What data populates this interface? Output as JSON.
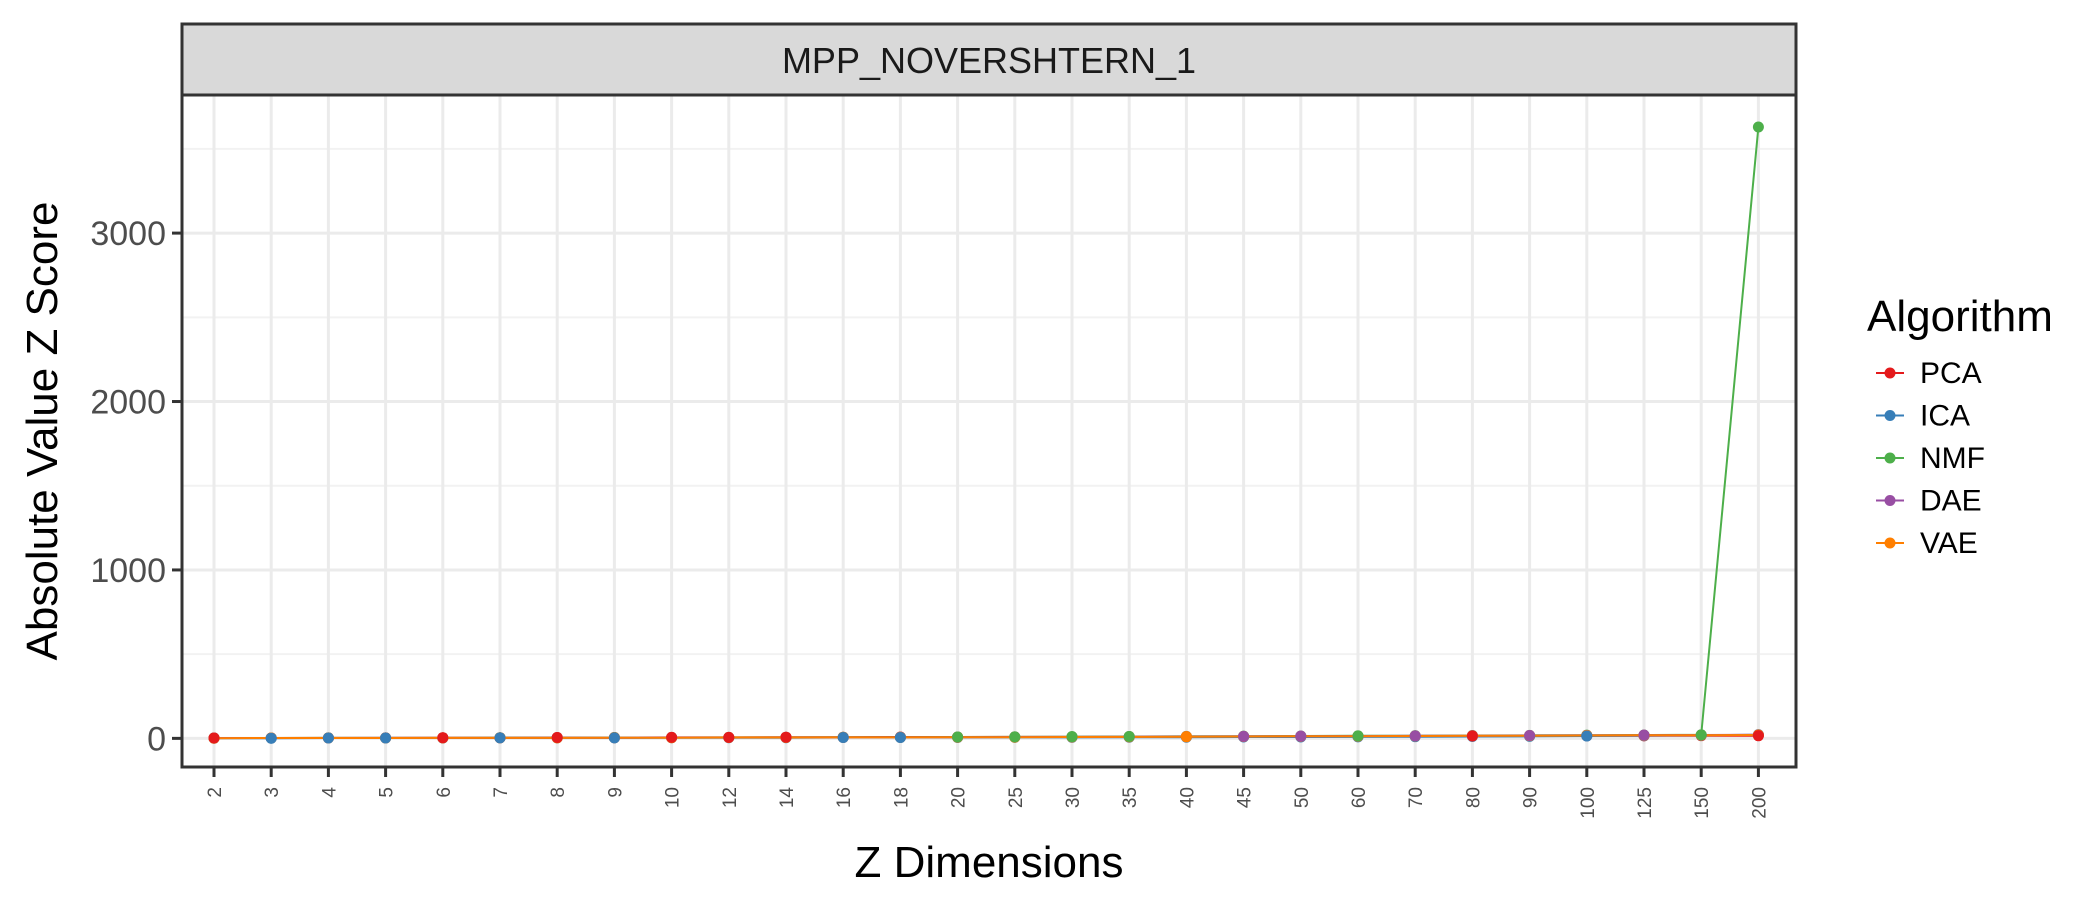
{
  "chart_data": {
    "type": "line",
    "title": "MPP_NOVERSHTERN_1",
    "xlabel": "Z Dimensions",
    "ylabel": "Absolute Value Z Score",
    "x_type": "categorical",
    "categories": [
      "2",
      "3",
      "4",
      "5",
      "6",
      "7",
      "8",
      "9",
      "10",
      "12",
      "14",
      "16",
      "18",
      "20",
      "25",
      "30",
      "35",
      "40",
      "45",
      "50",
      "60",
      "70",
      "80",
      "90",
      "100",
      "125",
      "150",
      "200"
    ],
    "ylim": [
      -170,
      3820
    ],
    "y_ticks": [
      0,
      1000,
      2000,
      3000
    ],
    "y_tick_labels": [
      "0",
      "1000",
      "2000",
      "3000"
    ],
    "grid": true,
    "legend": {
      "title": "Algorithm",
      "position": "right",
      "entries": [
        "PCA",
        "ICA",
        "NMF",
        "DAE",
        "VAE"
      ]
    },
    "series": [
      {
        "name": "PCA",
        "color": "#e41a1c",
        "values": [
          2,
          2,
          3,
          3,
          4,
          4,
          5,
          5,
          6,
          6,
          7,
          7,
          8,
          8,
          9,
          9,
          10,
          10,
          11,
          11,
          12,
          13,
          14,
          14,
          15,
          15,
          16,
          16
        ]
      },
      {
        "name": "ICA",
        "color": "#377eb8",
        "values": [
          1,
          1,
          2,
          2,
          2,
          3,
          3,
          3,
          4,
          4,
          4,
          5,
          5,
          5,
          6,
          6,
          7,
          7,
          8,
          8,
          9,
          10,
          11,
          12,
          14,
          16,
          18,
          22
        ]
      },
      {
        "name": "NMF",
        "color": "#4daf4a",
        "values": [
          2,
          2,
          3,
          3,
          3,
          4,
          4,
          5,
          5,
          6,
          6,
          7,
          7,
          8,
          9,
          10,
          11,
          12,
          13,
          14,
          15,
          16,
          17,
          18,
          19,
          20,
          21,
          3630
        ]
      },
      {
        "name": "DAE",
        "color": "#984ea3",
        "values": [
          2,
          2,
          2,
          3,
          3,
          3,
          4,
          4,
          5,
          5,
          6,
          6,
          7,
          7,
          8,
          9,
          10,
          11,
          12,
          13,
          14,
          15,
          16,
          17,
          18,
          19,
          20,
          21
        ]
      },
      {
        "name": "VAE",
        "color": "#ff7f00",
        "values": [
          1,
          2,
          2,
          2,
          3,
          3,
          3,
          4,
          4,
          5,
          5,
          6,
          6,
          7,
          7,
          8,
          9,
          10,
          11,
          12,
          13,
          14,
          15,
          16,
          17,
          18,
          19,
          20
        ]
      }
    ],
    "top_points": [
      "PCA",
      "ICA",
      "ICA",
      "ICA",
      "PCA",
      "ICA",
      "PCA",
      "ICA",
      "PCA",
      "PCA",
      "PCA",
      "ICA",
      "ICA",
      "NMF",
      "NMF",
      "NMF",
      "NMF",
      "VAE",
      "DAE",
      "DAE",
      "NMF",
      "DAE",
      "PCA",
      "DAE",
      "ICA",
      "DAE",
      "NMF",
      "PCA"
    ]
  }
}
